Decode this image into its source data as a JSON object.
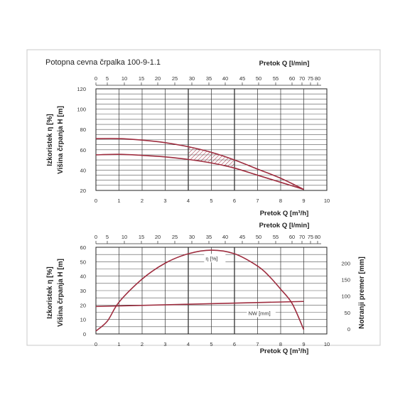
{
  "title": "Potopna cevna črpalka  100-9-1.1",
  "colors": {
    "curve": "#9e2d3f",
    "grid": "#444444",
    "frame_border": "#bbbbbb"
  },
  "chart_data": [
    {
      "type": "line",
      "id": "head-curve",
      "top_axis_label": "Pretok  Q [l/min]",
      "top_ticks": [
        "0",
        "5",
        "10",
        "15",
        "20",
        "25",
        "30",
        "35",
        "40",
        "45",
        "50",
        "55",
        "60",
        "70",
        "75",
        "80"
      ],
      "xlabel": "Pretok  Q [m³/h]",
      "x_ticks": [
        "0",
        "1",
        "2",
        "3",
        "4",
        "5",
        "6",
        "7",
        "8",
        "9",
        "10"
      ],
      "xlim": [
        0,
        10
      ],
      "ylabel_left_1": "Izkoristek η [%]",
      "ylabel_left_2": "Višina črpanja H [m]",
      "y_ticks": [
        "20",
        "40",
        "60",
        "80",
        "100",
        "120"
      ],
      "ylim": [
        20,
        120
      ],
      "grid": true,
      "hatched_band": {
        "x_from": 4,
        "x_to": 6
      },
      "series": [
        {
          "x": [
            0,
            1,
            2,
            3,
            4,
            5,
            6,
            7,
            8,
            9
          ],
          "y": [
            71,
            71,
            69.5,
            67,
            63,
            57.5,
            50,
            41,
            32,
            21
          ]
        },
        {
          "x": [
            0,
            1,
            2,
            3,
            4,
            5,
            6,
            7,
            8,
            9
          ],
          "y": [
            55,
            55.5,
            54.5,
            53,
            50.5,
            47,
            42,
            35,
            28,
            21
          ]
        }
      ]
    },
    {
      "type": "line",
      "id": "efficiency-curve",
      "top_axis_label": "Pretok  Q [l/min]",
      "top_ticks": [
        "0",
        "5",
        "10",
        "15",
        "20",
        "25",
        "30",
        "35",
        "40",
        "45",
        "50",
        "55",
        "60",
        "70",
        "75",
        "80"
      ],
      "xlabel": "Pretok  Q [m³/h]",
      "x_ticks": [
        "0",
        "1",
        "2",
        "3",
        "4",
        "5",
        "6",
        "7",
        "8",
        "9",
        "10"
      ],
      "xlim": [
        0,
        10
      ],
      "ylabel_left_1": "Izkoristek η [%]",
      "ylabel_left_2": "Višina črpanja H [m]",
      "y_ticks": [
        "0",
        "10",
        "20",
        "30",
        "40",
        "50",
        "60"
      ],
      "ylim": [
        0,
        60
      ],
      "ylabel_right": "Notranji premer [mm]",
      "y2_ticks": [
        "0",
        "50",
        "100",
        "150",
        "200"
      ],
      "y2lim": [
        0,
        250
      ],
      "grid": true,
      "series": [
        {
          "name": "η [%]",
          "x": [
            0,
            0.5,
            1,
            2,
            3,
            4,
            5,
            6,
            7,
            7.5,
            8,
            8.5,
            9
          ],
          "y": [
            2,
            9,
            22,
            38,
            49,
            55.5,
            58,
            55.5,
            47,
            40,
            31,
            21,
            3
          ]
        },
        {
          "name": "NW [mm]",
          "x": [
            0,
            9
          ],
          "y": [
            19,
            22.5
          ]
        }
      ]
    }
  ]
}
